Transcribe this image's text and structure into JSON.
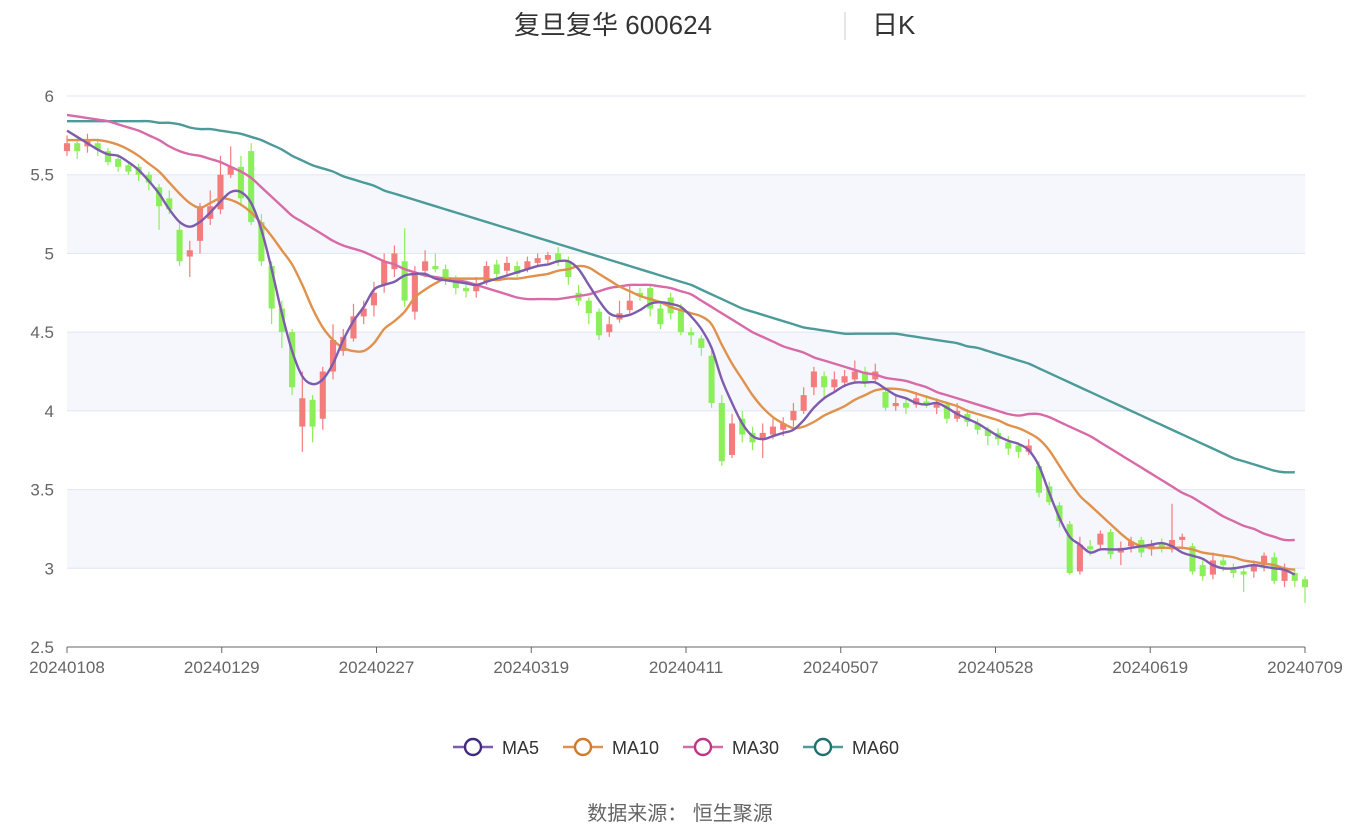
{
  "chart_data": {
    "type": "candlestick",
    "title": "复旦复华 600624",
    "subtitle": "日K",
    "source": "数据来源： 恒生聚源",
    "ylim": [
      2.5,
      6
    ],
    "yticks": [
      "2.5",
      "3",
      "3.5",
      "4",
      "4.5",
      "5",
      "5.5",
      "6"
    ],
    "xticks": [
      "20240108",
      "20240129",
      "20240227",
      "20240319",
      "20240411",
      "20240507",
      "20240528",
      "20240619",
      "20240709"
    ],
    "legend": [
      "MA5",
      "MA10",
      "MA30",
      "MA60"
    ],
    "legend_position": "bottom",
    "up_color": "#f47c7c",
    "down_color": "#8cef5a",
    "ma_colors": {
      "MA5": "#7e5cad",
      "MA10": "#e0914c",
      "MA30": "#d86aa8",
      "MA60": "#4c9a9a"
    },
    "candles_count": 121,
    "candles": [
      [
        5.65,
        5.7,
        5.75,
        5.62
      ],
      [
        5.7,
        5.65,
        5.73,
        5.6
      ],
      [
        5.68,
        5.72,
        5.76,
        5.64
      ],
      [
        5.7,
        5.66,
        5.73,
        5.62
      ],
      [
        5.65,
        5.58,
        5.67,
        5.56
      ],
      [
        5.6,
        5.55,
        5.63,
        5.52
      ],
      [
        5.56,
        5.52,
        5.58,
        5.5
      ],
      [
        5.55,
        5.5,
        5.57,
        5.46
      ],
      [
        5.5,
        5.45,
        5.52,
        5.4
      ],
      [
        5.42,
        5.3,
        5.44,
        5.15
      ],
      [
        5.35,
        5.28,
        5.4,
        5.25
      ],
      [
        5.15,
        4.95,
        5.2,
        4.92
      ],
      [
        4.98,
        5.02,
        5.08,
        4.85
      ],
      [
        5.08,
        5.3,
        5.32,
        5.0
      ],
      [
        5.22,
        5.3,
        5.4,
        5.18
      ],
      [
        5.28,
        5.5,
        5.62,
        5.25
      ],
      [
        5.5,
        5.55,
        5.68,
        5.48
      ],
      [
        5.55,
        5.35,
        5.62,
        5.3
      ],
      [
        5.65,
        5.2,
        5.7,
        5.18
      ],
      [
        5.2,
        4.95,
        5.25,
        4.92
      ],
      [
        4.92,
        4.65,
        4.95,
        4.55
      ],
      [
        4.65,
        4.5,
        4.7,
        4.4
      ],
      [
        4.5,
        4.15,
        4.52,
        4.1
      ],
      [
        3.9,
        4.08,
        4.25,
        3.74
      ],
      [
        4.07,
        3.9,
        4.1,
        3.8
      ],
      [
        3.95,
        4.25,
        4.28,
        3.88
      ],
      [
        4.25,
        4.45,
        4.55,
        4.2
      ],
      [
        4.38,
        4.47,
        4.52,
        4.35
      ],
      [
        4.46,
        4.6,
        4.68,
        4.44
      ],
      [
        4.6,
        4.65,
        4.7,
        4.55
      ],
      [
        4.67,
        4.75,
        4.82,
        4.6
      ],
      [
        4.8,
        4.95,
        5.0,
        4.75
      ],
      [
        4.9,
        5.0,
        5.05,
        4.85
      ],
      [
        4.95,
        4.7,
        5.16,
        4.66
      ],
      [
        4.63,
        4.88,
        4.92,
        4.58
      ],
      [
        4.89,
        4.95,
        5.02,
        4.85
      ],
      [
        4.92,
        4.9,
        5.0,
        4.88
      ],
      [
        4.9,
        4.85,
        4.93,
        4.8
      ],
      [
        4.83,
        4.78,
        4.86,
        4.74
      ],
      [
        4.78,
        4.76,
        4.82,
        4.72
      ],
      [
        4.76,
        4.8,
        4.85,
        4.72
      ],
      [
        4.82,
        4.92,
        4.95,
        4.8
      ],
      [
        4.93,
        4.87,
        4.96,
        4.84
      ],
      [
        4.89,
        4.94,
        4.98,
        4.86
      ],
      [
        4.92,
        4.87,
        4.95,
        4.85
      ],
      [
        4.9,
        4.95,
        4.98,
        4.88
      ],
      [
        4.94,
        4.97,
        5.0,
        4.92
      ],
      [
        4.96,
        4.99,
        5.01,
        4.94
      ],
      [
        5.0,
        4.95,
        5.04,
        4.92
      ],
      [
        4.95,
        4.85,
        4.98,
        4.8
      ],
      [
        4.75,
        4.7,
        4.8,
        4.67
      ],
      [
        4.7,
        4.62,
        4.72,
        4.55
      ],
      [
        4.63,
        4.48,
        4.65,
        4.45
      ],
      [
        4.5,
        4.55,
        4.6,
        4.47
      ],
      [
        4.58,
        4.62,
        4.7,
        4.56
      ],
      [
        4.64,
        4.7,
        4.8,
        4.62
      ],
      [
        4.75,
        4.73,
        4.78,
        4.7
      ],
      [
        4.78,
        4.65,
        4.8,
        4.6
      ],
      [
        4.65,
        4.55,
        4.7,
        4.52
      ],
      [
        4.72,
        4.62,
        4.75,
        4.58
      ],
      [
        4.65,
        4.5,
        4.68,
        4.48
      ],
      [
        4.5,
        4.48,
        4.53,
        4.42
      ],
      [
        4.46,
        4.4,
        4.48,
        4.35
      ],
      [
        4.35,
        4.05,
        4.38,
        4.02
      ],
      [
        4.05,
        3.68,
        4.1,
        3.65
      ],
      [
        3.72,
        3.92,
        3.98,
        3.7
      ],
      [
        3.95,
        3.85,
        4.0,
        3.8
      ],
      [
        3.86,
        3.8,
        3.9,
        3.75
      ],
      [
        3.82,
        3.86,
        3.92,
        3.7
      ],
      [
        3.85,
        3.9,
        3.95,
        3.82
      ],
      [
        3.88,
        3.92,
        3.96,
        3.84
      ],
      [
        3.94,
        4.0,
        4.05,
        3.9
      ],
      [
        4.0,
        4.1,
        4.15,
        3.98
      ],
      [
        4.15,
        4.25,
        4.28,
        4.1
      ],
      [
        4.22,
        4.15,
        4.25,
        4.08
      ],
      [
        4.15,
        4.2,
        4.25,
        4.12
      ],
      [
        4.18,
        4.22,
        4.26,
        4.15
      ],
      [
        4.2,
        4.25,
        4.32,
        4.18
      ],
      [
        4.25,
        4.18,
        4.28,
        4.15
      ],
      [
        4.2,
        4.25,
        4.3,
        4.18
      ],
      [
        4.12,
        4.02,
        4.15,
        4.0
      ],
      [
        4.03,
        4.05,
        4.1,
        4.0
      ],
      [
        4.05,
        4.02,
        4.08,
        3.98
      ],
      [
        4.04,
        4.08,
        4.12,
        4.02
      ],
      [
        4.06,
        4.04,
        4.1,
        4.02
      ],
      [
        4.02,
        4.05,
        4.08,
        3.98
      ],
      [
        4.04,
        3.95,
        4.06,
        3.92
      ],
      [
        3.95,
        4.0,
        4.05,
        3.93
      ],
      [
        3.98,
        3.93,
        4.01,
        3.9
      ],
      [
        3.92,
        3.88,
        3.95,
        3.85
      ],
      [
        3.88,
        3.84,
        3.9,
        3.78
      ],
      [
        3.86,
        3.82,
        3.89,
        3.78
      ],
      [
        3.8,
        3.76,
        3.84,
        3.72
      ],
      [
        3.78,
        3.74,
        3.8,
        3.7
      ],
      [
        3.74,
        3.78,
        3.82,
        3.72
      ],
      [
        3.65,
        3.48,
        3.68,
        3.45
      ],
      [
        3.52,
        3.42,
        3.55,
        3.4
      ],
      [
        3.4,
        3.3,
        3.42,
        3.26
      ],
      [
        3.28,
        2.97,
        3.3,
        2.96
      ],
      [
        2.98,
        3.15,
        3.2,
        2.96
      ],
      [
        3.14,
        3.12,
        3.18,
        3.08
      ],
      [
        3.15,
        3.22,
        3.24,
        3.12
      ],
      [
        3.23,
        3.09,
        3.25,
        3.06
      ],
      [
        3.1,
        3.13,
        3.17,
        3.02
      ],
      [
        3.14,
        3.17,
        3.2,
        3.1
      ],
      [
        3.18,
        3.1,
        3.2,
        3.07
      ],
      [
        3.12,
        3.15,
        3.18,
        3.08
      ],
      [
        3.16,
        3.13,
        3.19,
        3.1
      ],
      [
        3.12,
        3.18,
        3.41,
        3.1
      ],
      [
        3.18,
        3.2,
        3.22,
        3.12
      ],
      [
        3.14,
        2.98,
        3.16,
        2.96
      ],
      [
        3.02,
        2.95,
        3.05,
        2.92
      ],
      [
        2.96,
        3.05,
        3.1,
        2.93
      ],
      [
        3.05,
        3.02,
        3.08,
        2.98
      ],
      [
        3.0,
        2.97,
        3.03,
        2.94
      ],
      [
        2.98,
        2.96,
        3.0,
        2.85
      ],
      [
        2.98,
        3.02,
        3.05,
        2.94
      ],
      [
        3.02,
        3.08,
        3.1,
        2.98
      ],
      [
        3.07,
        2.92,
        3.1,
        2.9
      ],
      [
        2.92,
        3.0,
        3.03,
        2.88
      ],
      [
        2.97,
        2.92,
        3.0,
        2.88
      ],
      [
        2.93,
        2.88,
        2.95,
        2.78
      ]
    ],
    "ma5": [
      5.78,
      5.74,
      5.7,
      5.66,
      5.63,
      5.62,
      5.58,
      5.53,
      5.46,
      5.38,
      5.28,
      5.2,
      5.17,
      5.2,
      5.26,
      5.33,
      5.39,
      5.39,
      5.32,
      5.15,
      4.9,
      4.62,
      4.38,
      4.22,
      4.17,
      4.2,
      4.3,
      4.45,
      4.57,
      4.66,
      4.77,
      4.8,
      4.82,
      4.86,
      4.87,
      4.87,
      4.84,
      4.83,
      4.82,
      4.81,
      4.8,
      4.82,
      4.84,
      4.86,
      4.88,
      4.9,
      4.92,
      4.93,
      4.95,
      4.95,
      4.9,
      4.8,
      4.7,
      4.62,
      4.6,
      4.61,
      4.64,
      4.68,
      4.69,
      4.68,
      4.66,
      4.6,
      4.52,
      4.4,
      4.2,
      4.05,
      3.92,
      3.84,
      3.82,
      3.84,
      3.86,
      3.88,
      3.94,
      4.02,
      4.08,
      4.12,
      4.16,
      4.18,
      4.18,
      4.18,
      4.14,
      4.1,
      4.08,
      4.05,
      4.04,
      4.05,
      4.02,
      3.98,
      3.95,
      3.92,
      3.88,
      3.84,
      3.81,
      3.79,
      3.75,
      3.65,
      3.48,
      3.32,
      3.2,
      3.15,
      3.1,
      3.12,
      3.12,
      3.12,
      3.13,
      3.14,
      3.15,
      3.16,
      3.14,
      3.1,
      3.08,
      3.06,
      3.02,
      3.0,
      3.0,
      3.01,
      3.02,
      3.01,
      3.0,
      2.99,
      2.96
    ],
    "ma10": [
      5.72,
      5.72,
      5.72,
      5.72,
      5.71,
      5.69,
      5.66,
      5.62,
      5.57,
      5.52,
      5.45,
      5.38,
      5.32,
      5.29,
      5.32,
      5.35,
      5.34,
      5.31,
      5.26,
      5.19,
      5.11,
      5.02,
      4.93,
      4.8,
      4.65,
      4.53,
      4.45,
      4.4,
      4.38,
      4.38,
      4.43,
      4.52,
      4.57,
      4.63,
      4.72,
      4.77,
      4.81,
      4.84,
      4.84,
      4.84,
      4.84,
      4.84,
      4.83,
      4.84,
      4.84,
      4.85,
      4.86,
      4.87,
      4.89,
      4.9,
      4.92,
      4.91,
      4.87,
      4.83,
      4.79,
      4.76,
      4.73,
      4.71,
      4.69,
      4.66,
      4.64,
      4.62,
      4.6,
      4.55,
      4.42,
      4.3,
      4.2,
      4.1,
      4.02,
      3.96,
      3.92,
      3.89,
      3.9,
      3.93,
      3.97,
      4.0,
      4.03,
      4.07,
      4.1,
      4.13,
      4.14,
      4.14,
      4.13,
      4.11,
      4.09,
      4.07,
      4.05,
      4.03,
      4.0,
      3.98,
      3.96,
      3.94,
      3.91,
      3.89,
      3.86,
      3.82,
      3.75,
      3.65,
      3.55,
      3.46,
      3.4,
      3.34,
      3.28,
      3.22,
      3.17,
      3.14,
      3.13,
      3.13,
      3.13,
      3.13,
      3.12,
      3.1,
      3.09,
      3.08,
      3.07,
      3.05,
      3.04,
      3.03,
      3.02,
      3.0,
      2.99
    ],
    "ma30": [
      5.88,
      5.87,
      5.86,
      5.85,
      5.84,
      5.82,
      5.8,
      5.78,
      5.75,
      5.72,
      5.68,
      5.65,
      5.63,
      5.62,
      5.6,
      5.58,
      5.55,
      5.52,
      5.48,
      5.42,
      5.36,
      5.3,
      5.24,
      5.2,
      5.16,
      5.12,
      5.08,
      5.05,
      5.03,
      5.01,
      4.98,
      4.95,
      4.93,
      4.9,
      4.88,
      4.86,
      4.85,
      4.84,
      4.83,
      4.82,
      4.8,
      4.78,
      4.76,
      4.74,
      4.72,
      4.71,
      4.71,
      4.71,
      4.71,
      4.72,
      4.73,
      4.74,
      4.76,
      4.78,
      4.79,
      4.8,
      4.8,
      4.8,
      4.79,
      4.78,
      4.76,
      4.74,
      4.7,
      4.66,
      4.62,
      4.58,
      4.54,
      4.5,
      4.47,
      4.44,
      4.41,
      4.39,
      4.37,
      4.34,
      4.32,
      4.3,
      4.28,
      4.26,
      4.24,
      4.23,
      4.21,
      4.2,
      4.19,
      4.17,
      4.15,
      4.12,
      4.1,
      4.08,
      4.06,
      4.04,
      4.02,
      4.0,
      3.98,
      3.97,
      3.98,
      3.98,
      3.96,
      3.93,
      3.9,
      3.87,
      3.84,
      3.8,
      3.76,
      3.72,
      3.68,
      3.64,
      3.6,
      3.56,
      3.52,
      3.48,
      3.45,
      3.41,
      3.37,
      3.33,
      3.3,
      3.27,
      3.25,
      3.22,
      3.2,
      3.18,
      3.18
    ],
    "ma60": [
      5.84,
      5.84,
      5.84,
      5.84,
      5.84,
      5.84,
      5.84,
      5.84,
      5.84,
      5.83,
      5.83,
      5.82,
      5.8,
      5.79,
      5.79,
      5.78,
      5.77,
      5.76,
      5.74,
      5.72,
      5.69,
      5.66,
      5.62,
      5.59,
      5.56,
      5.54,
      5.52,
      5.49,
      5.47,
      5.45,
      5.43,
      5.4,
      5.38,
      5.36,
      5.34,
      5.32,
      5.3,
      5.28,
      5.26,
      5.24,
      5.22,
      5.2,
      5.18,
      5.16,
      5.14,
      5.12,
      5.1,
      5.08,
      5.06,
      5.04,
      5.02,
      5.0,
      4.98,
      4.96,
      4.94,
      4.92,
      4.9,
      4.88,
      4.86,
      4.84,
      4.82,
      4.8,
      4.77,
      4.74,
      4.71,
      4.68,
      4.65,
      4.63,
      4.61,
      4.59,
      4.57,
      4.55,
      4.53,
      4.52,
      4.51,
      4.5,
      4.49,
      4.49,
      4.49,
      4.49,
      4.49,
      4.49,
      4.48,
      4.47,
      4.46,
      4.45,
      4.44,
      4.43,
      4.41,
      4.4,
      4.38,
      4.36,
      4.34,
      4.32,
      4.3,
      4.27,
      4.24,
      4.21,
      4.18,
      4.15,
      4.12,
      4.09,
      4.06,
      4.03,
      4.0,
      3.97,
      3.94,
      3.91,
      3.88,
      3.85,
      3.82,
      3.79,
      3.76,
      3.73,
      3.7,
      3.68,
      3.66,
      3.64,
      3.62,
      3.61,
      3.61
    ]
  }
}
